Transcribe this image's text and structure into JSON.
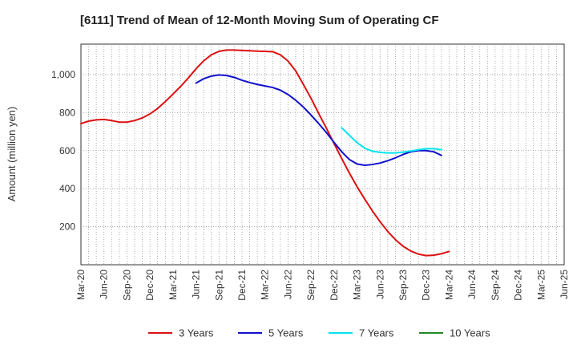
{
  "chart_data": {
    "type": "line",
    "title": "[6111]  Trend of Mean of 12-Month Moving Sum of Operating CF",
    "xlabel": "",
    "ylabel": "Amount (million yen)",
    "ylim": [
      0,
      1160
    ],
    "yticks": [
      200,
      400,
      600,
      800,
      1000
    ],
    "ytick_labels": [
      "200",
      "400",
      "600",
      "800",
      "1,000"
    ],
    "x_start": "Mar-20",
    "x_end": "Jun-25",
    "x_tick_labels": [
      "Mar-20",
      "Jun-20",
      "Sep-20",
      "Dec-20",
      "Mar-21",
      "Jun-21",
      "Sep-21",
      "Dec-21",
      "Mar-22",
      "Jun-22",
      "Sep-22",
      "Dec-22",
      "Mar-23",
      "Jun-23",
      "Sep-23",
      "Dec-23",
      "Mar-24",
      "Jun-24",
      "Sep-24",
      "Dec-24",
      "Mar-25",
      "Jun-25"
    ],
    "grid": true,
    "legend_position": "bottom",
    "series": [
      {
        "name": "3 Years",
        "color": "#dd1111",
        "points": [
          [
            0,
            742
          ],
          [
            1,
            755
          ],
          [
            2,
            762
          ],
          [
            3,
            764
          ],
          [
            4,
            758
          ],
          [
            5,
            750
          ],
          [
            6,
            750
          ],
          [
            7,
            758
          ],
          [
            8,
            772
          ],
          [
            9,
            793
          ],
          [
            10,
            822
          ],
          [
            11,
            858
          ],
          [
            12,
            897
          ],
          [
            13,
            938
          ],
          [
            14,
            982
          ],
          [
            15,
            1030
          ],
          [
            16,
            1072
          ],
          [
            17,
            1104
          ],
          [
            18,
            1122
          ],
          [
            19,
            1129
          ],
          [
            20,
            1129
          ],
          [
            21,
            1127
          ],
          [
            22,
            1125
          ],
          [
            23,
            1123
          ],
          [
            24,
            1122
          ],
          [
            25,
            1120
          ],
          [
            26,
            1104
          ],
          [
            27,
            1071
          ],
          [
            28,
            1019
          ],
          [
            29,
            948
          ],
          [
            30,
            875
          ],
          [
            31,
            795
          ],
          [
            32,
            718
          ],
          [
            33,
            637
          ],
          [
            34,
            558
          ],
          [
            35,
            482
          ],
          [
            36,
            410
          ],
          [
            37,
            345
          ],
          [
            38,
            283
          ],
          [
            39,
            226
          ],
          [
            40,
            175
          ],
          [
            41,
            132
          ],
          [
            42,
            97
          ],
          [
            43,
            72
          ],
          [
            44,
            56
          ],
          [
            45,
            48
          ],
          [
            46,
            50
          ],
          [
            47,
            58
          ],
          [
            48,
            70
          ]
        ]
      },
      {
        "name": "5 Years",
        "color": "#1111cc",
        "points": [
          [
            15,
            955
          ],
          [
            16,
            978
          ],
          [
            17,
            992
          ],
          [
            18,
            998
          ],
          [
            19,
            995
          ],
          [
            20,
            985
          ],
          [
            21,
            970
          ],
          [
            22,
            958
          ],
          [
            23,
            948
          ],
          [
            24,
            940
          ],
          [
            25,
            932
          ],
          [
            26,
            918
          ],
          [
            27,
            895
          ],
          [
            28,
            865
          ],
          [
            29,
            829
          ],
          [
            30,
            787
          ],
          [
            31,
            742
          ],
          [
            32,
            695
          ],
          [
            33,
            643
          ],
          [
            34,
            594
          ],
          [
            35,
            553
          ],
          [
            36,
            530
          ],
          [
            37,
            523
          ],
          [
            38,
            527
          ],
          [
            39,
            535
          ],
          [
            40,
            547
          ],
          [
            41,
            562
          ],
          [
            42,
            580
          ],
          [
            43,
            594
          ],
          [
            44,
            600
          ],
          [
            45,
            600
          ],
          [
            46,
            594
          ],
          [
            47,
            575
          ]
        ]
      },
      {
        "name": "7 Years",
        "color": "#00e5ee",
        "points": [
          [
            34,
            720
          ],
          [
            35,
            680
          ],
          [
            36,
            642
          ],
          [
            37,
            613
          ],
          [
            38,
            597
          ],
          [
            39,
            591
          ],
          [
            40,
            588
          ],
          [
            41,
            588
          ],
          [
            42,
            592
          ],
          [
            43,
            598
          ],
          [
            44,
            605
          ],
          [
            45,
            610
          ],
          [
            46,
            610
          ],
          [
            47,
            605
          ]
        ]
      },
      {
        "name": "10 Years",
        "color": "#228822",
        "points": []
      }
    ]
  }
}
